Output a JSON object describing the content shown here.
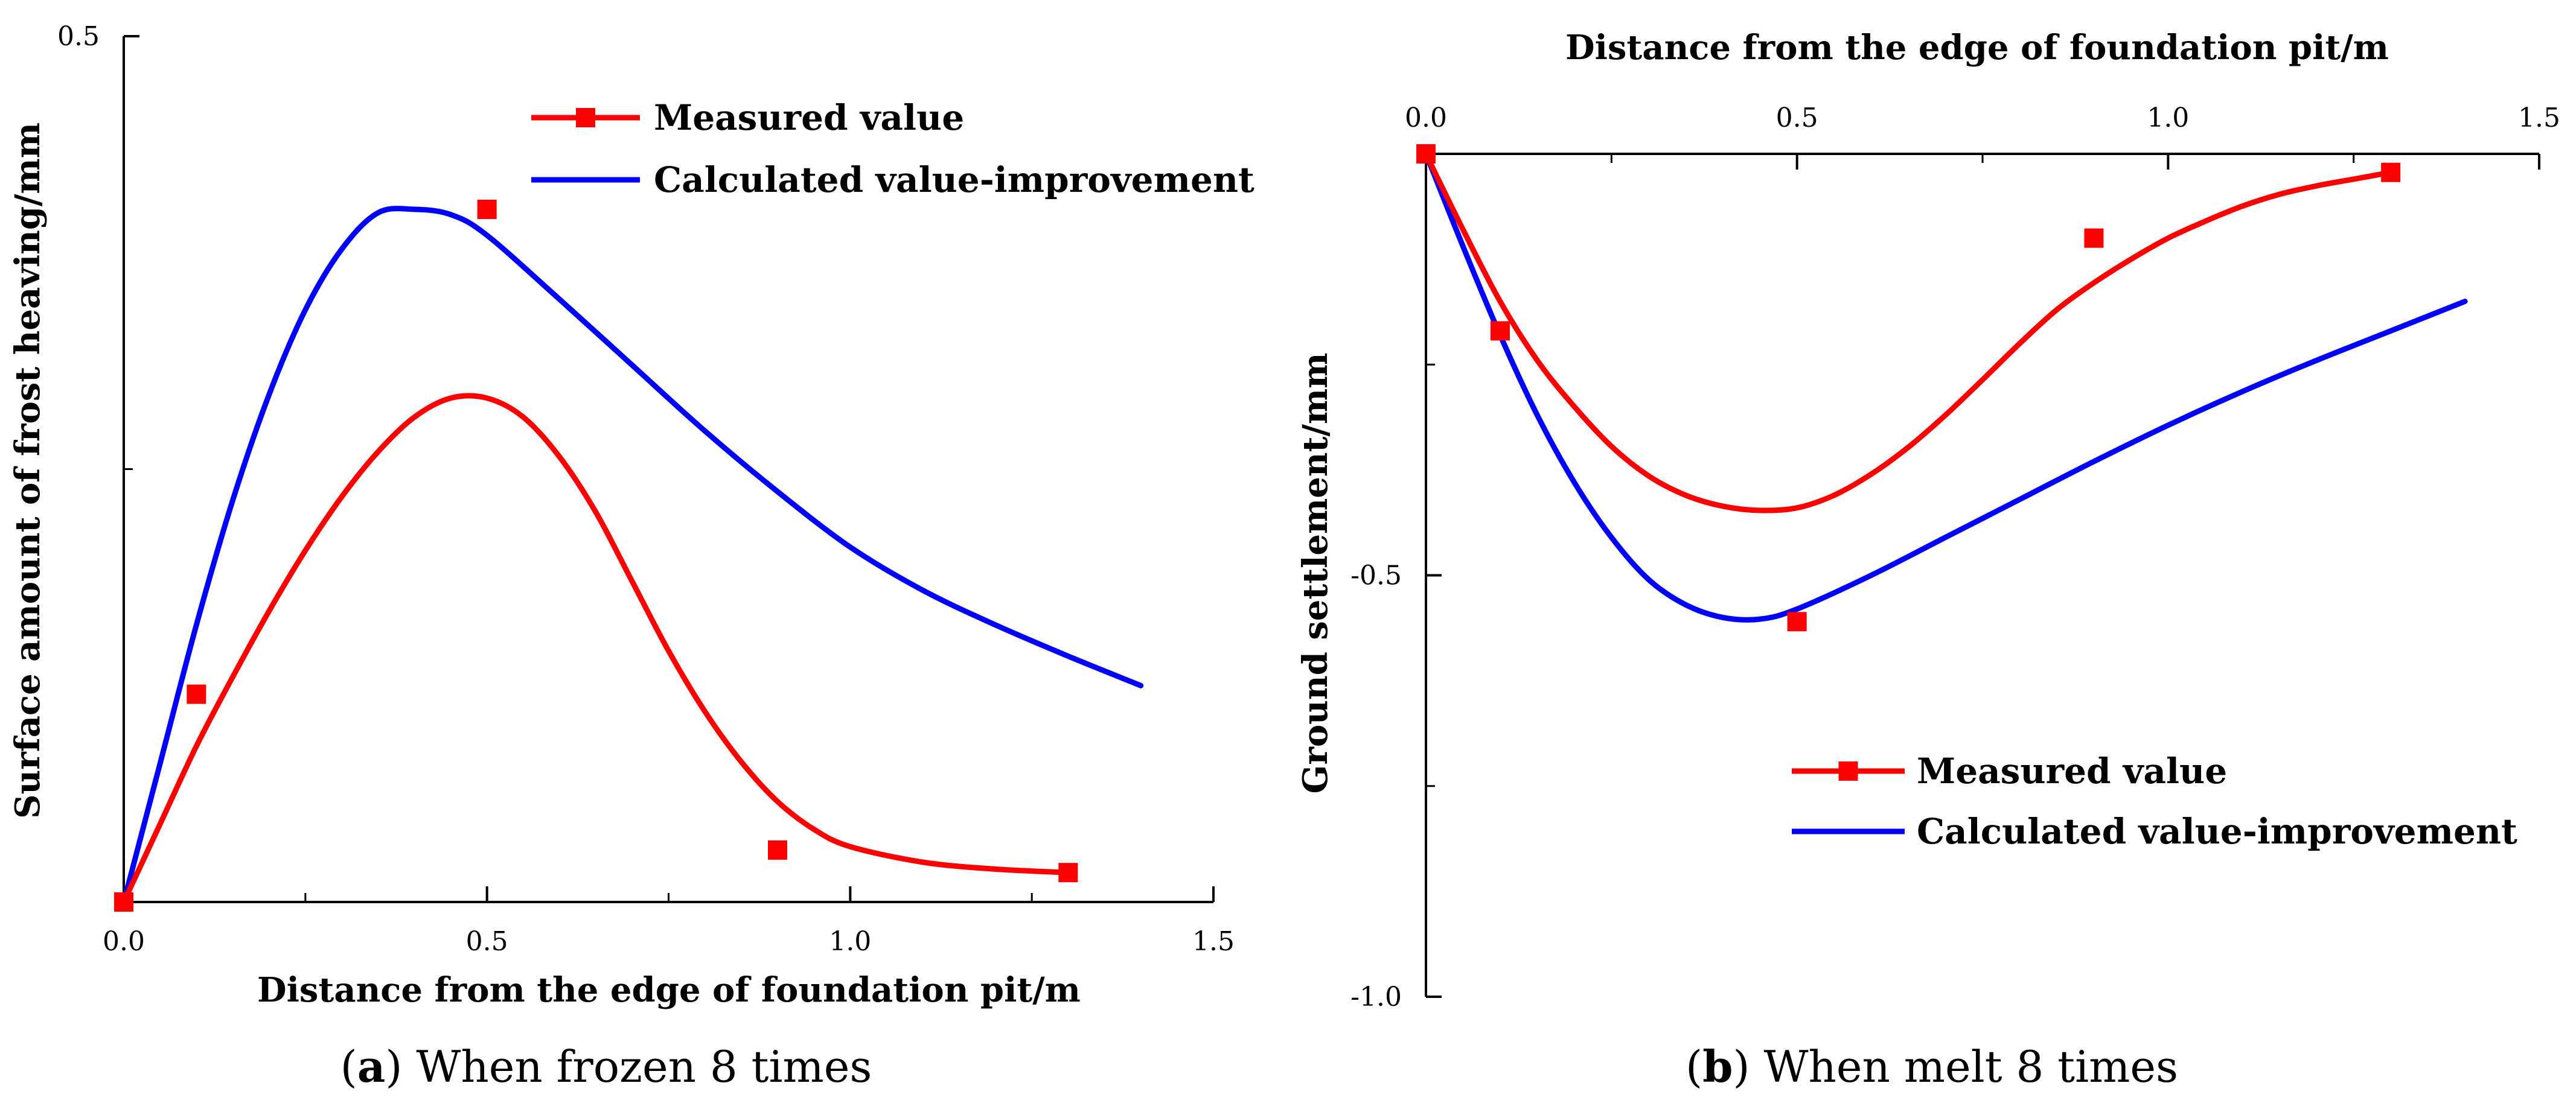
{
  "chart_data": [
    {
      "id": "a",
      "type": "line",
      "caption": {
        "letter": "a",
        "text": " When frozen 8 times"
      },
      "xlabel": "Distance from the edge of foundation pit/m",
      "ylabel": "Surface amount of frost heaving/mm",
      "xlim": [
        0.0,
        1.5
      ],
      "ylim": [
        0.0,
        0.5
      ],
      "x_ticks": [
        "0.0",
        "0.5",
        "1.0",
        "1.5"
      ],
      "y_ticks": [
        "0.5"
      ],
      "series": [
        {
          "name": "Measured value",
          "color": "#ff0000",
          "marker": "square",
          "points": [
            [
              0.0,
              0.0
            ],
            [
              0.1,
              0.12
            ],
            [
              0.5,
              0.4
            ],
            [
              0.9,
              0.03
            ],
            [
              1.3,
              0.017
            ]
          ],
          "fit": [
            [
              0.0,
              0.0
            ],
            [
              0.05,
              0.045
            ],
            [
              0.1,
              0.09
            ],
            [
              0.15,
              0.13
            ],
            [
              0.2,
              0.168
            ],
            [
              0.25,
              0.203
            ],
            [
              0.3,
              0.234
            ],
            [
              0.35,
              0.26
            ],
            [
              0.4,
              0.28
            ],
            [
              0.45,
              0.291
            ],
            [
              0.5,
              0.291
            ],
            [
              0.55,
              0.28
            ],
            [
              0.6,
              0.257
            ],
            [
              0.65,
              0.225
            ],
            [
              0.7,
              0.185
            ],
            [
              0.75,
              0.145
            ],
            [
              0.8,
              0.11
            ],
            [
              0.85,
              0.081
            ],
            [
              0.9,
              0.058
            ],
            [
              0.95,
              0.042
            ],
            [
              1.0,
              0.032
            ],
            [
              1.1,
              0.023
            ],
            [
              1.2,
              0.019
            ],
            [
              1.3,
              0.017
            ]
          ]
        },
        {
          "name": "Calculated value-improvement",
          "color": "#0000ff",
          "marker": "none",
          "fit": [
            [
              0.0,
              0.0
            ],
            [
              0.05,
              0.08
            ],
            [
              0.1,
              0.16
            ],
            [
              0.15,
              0.232
            ],
            [
              0.2,
              0.293
            ],
            [
              0.25,
              0.342
            ],
            [
              0.3,
              0.377
            ],
            [
              0.35,
              0.398
            ],
            [
              0.4,
              0.4
            ],
            [
              0.45,
              0.397
            ],
            [
              0.5,
              0.385
            ],
            [
              0.6,
              0.348
            ],
            [
              0.7,
              0.31
            ],
            [
              0.8,
              0.272
            ],
            [
              0.9,
              0.237
            ],
            [
              1.0,
              0.205
            ],
            [
              1.1,
              0.18
            ],
            [
              1.2,
              0.16
            ],
            [
              1.3,
              0.142
            ],
            [
              1.4,
              0.125
            ]
          ]
        }
      ],
      "legend": [
        {
          "label": "Measured value",
          "color": "#ff0000",
          "marker": "square"
        },
        {
          "label": "Calculated value-improvement",
          "color": "#0000ff",
          "marker": "none"
        }
      ],
      "legend_placement": "top-right",
      "grid": false
    },
    {
      "id": "b",
      "type": "line",
      "caption": {
        "letter": "b",
        "text": " When melt 8 times"
      },
      "xlabel": "Distance from the edge of foundation pit/m",
      "ylabel": "Ground settlement/mm",
      "xlim": [
        0.0,
        1.5
      ],
      "ylim": [
        -1.0,
        0.0
      ],
      "x_axis_position": "top",
      "x_ticks": [
        "0.0",
        "0.5",
        "1.0",
        "1.5"
      ],
      "y_ticks": [
        "-0.5",
        "-1.0"
      ],
      "series": [
        {
          "name": "Measured value",
          "color": "#ff0000",
          "marker": "square",
          "points": [
            [
              0.0,
              0.0
            ],
            [
              0.1,
              -0.21
            ],
            [
              0.5,
              -0.555
            ],
            [
              0.9,
              -0.1
            ],
            [
              1.3,
              -0.022
            ]
          ],
          "fit": [
            [
              0.0,
              0.0
            ],
            [
              0.05,
              -0.09
            ],
            [
              0.1,
              -0.175
            ],
            [
              0.15,
              -0.245
            ],
            [
              0.2,
              -0.3
            ],
            [
              0.25,
              -0.347
            ],
            [
              0.3,
              -0.382
            ],
            [
              0.35,
              -0.405
            ],
            [
              0.4,
              -0.418
            ],
            [
              0.45,
              -0.423
            ],
            [
              0.5,
              -0.42
            ],
            [
              0.55,
              -0.405
            ],
            [
              0.6,
              -0.38
            ],
            [
              0.65,
              -0.348
            ],
            [
              0.7,
              -0.31
            ],
            [
              0.75,
              -0.268
            ],
            [
              0.8,
              -0.225
            ],
            [
              0.85,
              -0.185
            ],
            [
              0.9,
              -0.153
            ],
            [
              0.95,
              -0.125
            ],
            [
              1.0,
              -0.1
            ],
            [
              1.05,
              -0.08
            ],
            [
              1.1,
              -0.062
            ],
            [
              1.15,
              -0.048
            ],
            [
              1.2,
              -0.038
            ],
            [
              1.25,
              -0.03
            ],
            [
              1.3,
              -0.022
            ]
          ]
        },
        {
          "name": "Calculated value-improvement",
          "color": "#0000ff",
          "marker": "none",
          "fit": [
            [
              0.0,
              0.0
            ],
            [
              0.05,
              -0.11
            ],
            [
              0.1,
              -0.215
            ],
            [
              0.15,
              -0.31
            ],
            [
              0.2,
              -0.39
            ],
            [
              0.25,
              -0.455
            ],
            [
              0.3,
              -0.505
            ],
            [
              0.35,
              -0.535
            ],
            [
              0.4,
              -0.55
            ],
            [
              0.45,
              -0.552
            ],
            [
              0.5,
              -0.54
            ],
            [
              0.6,
              -0.5
            ],
            [
              0.7,
              -0.455
            ],
            [
              0.8,
              -0.41
            ],
            [
              0.9,
              -0.365
            ],
            [
              1.0,
              -0.322
            ],
            [
              1.1,
              -0.282
            ],
            [
              1.2,
              -0.245
            ],
            [
              1.3,
              -0.21
            ],
            [
              1.4,
              -0.175
            ]
          ]
        }
      ],
      "legend": [
        {
          "label": "Measured value",
          "color": "#ff0000",
          "marker": "square"
        },
        {
          "label": "Calculated value-improvement",
          "color": "#0000ff",
          "marker": "none"
        }
      ],
      "legend_placement": "bottom-right",
      "grid": false
    }
  ]
}
